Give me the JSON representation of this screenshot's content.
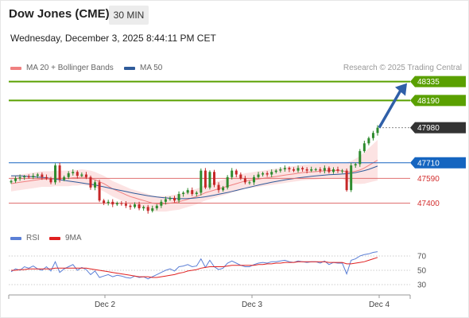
{
  "header": {
    "instrument": "Dow Jones (CME)",
    "timeframe": "30 MIN",
    "datetime": "Wednesday, December 3, 2025 8:44:11 PM CET"
  },
  "legend": {
    "bollinger": "MA 20 + Bollinger Bands",
    "ma50": "MA 50",
    "credit": "Research © 2025 Trading Central",
    "rsi": "RSI",
    "rsi_ma": "9MA"
  },
  "colors": {
    "bull": "#2e8b2e",
    "bear": "#c62828",
    "ma20": "#f08080",
    "ma50": "#2f5b9a",
    "target": "#5aa000",
    "pivot": "#1565c0",
    "support": "#d32f2f",
    "current": "#333333",
    "arrow": "#2f5fa8",
    "rsi": "#5b7fd6",
    "rsi_ma": "#e02020"
  },
  "chart_data": [
    {
      "type": "candlestick",
      "title": "Dow Jones (CME)",
      "ylim": [
        47250,
        48400
      ],
      "x_labels": [
        "Dec 2",
        "Dec 3",
        "Dec 4"
      ],
      "levels": [
        {
          "name": "target-2",
          "value": 48335,
          "label": "48335",
          "kind": "target"
        },
        {
          "name": "target-1",
          "value": 48190,
          "label": "48190",
          "kind": "target"
        },
        {
          "name": "current-price",
          "value": 47980,
          "label": "47980",
          "kind": "current"
        },
        {
          "name": "pivot",
          "value": 47710,
          "label": "47710",
          "kind": "pivot"
        },
        {
          "name": "support-1",
          "value": 47590,
          "label": "47590",
          "kind": "support"
        },
        {
          "name": "support-2",
          "value": 47400,
          "label": "47400",
          "kind": "support"
        }
      ],
      "close_path": [
        47570,
        47590,
        47600,
        47605,
        47600,
        47610,
        47620,
        47600,
        47590,
        47560,
        47690,
        47580,
        47600,
        47630,
        47640,
        47610,
        47620,
        47600,
        47520,
        47560,
        47420,
        47400,
        47410,
        47390,
        47400,
        47395,
        47380,
        47370,
        47390,
        47360,
        47370,
        47340,
        47360,
        47380,
        47410,
        47430,
        47440,
        47420,
        47470,
        47480,
        47500,
        47470,
        47480,
        47650,
        47520,
        47640,
        47540,
        47500,
        47520,
        47600,
        47650,
        47620,
        47590,
        47560,
        47560,
        47600,
        47620,
        47630,
        47620,
        47640,
        47650,
        47660,
        47670,
        47660,
        47650,
        47670,
        47660,
        47650,
        47660,
        47660,
        47650,
        47670,
        47640,
        47660,
        47650,
        47650,
        47500,
        47690,
        47700,
        47800,
        47860,
        47900,
        47940,
        47980
      ],
      "ma20": [
        47550,
        47555,
        47560,
        47565,
        47570,
        47575,
        47580,
        47585,
        47585,
        47585,
        47590,
        47590,
        47590,
        47590,
        47595,
        47595,
        47600,
        47595,
        47590,
        47580,
        47565,
        47550,
        47530,
        47510,
        47495,
        47480,
        47465,
        47450,
        47440,
        47430,
        47420,
        47410,
        47400,
        47395,
        47395,
        47395,
        47400,
        47405,
        47410,
        47420,
        47430,
        47440,
        47450,
        47465,
        47480,
        47490,
        47500,
        47510,
        47520,
        47530,
        47540,
        47550,
        47560,
        47570,
        47575,
        47580,
        47585,
        47590,
        47595,
        47600,
        47605,
        47610,
        47615,
        47620,
        47625,
        47630,
        47635,
        47638,
        47640,
        47642,
        47645,
        47648,
        47650,
        47652,
        47650,
        47648,
        47640,
        47640,
        47645,
        47655,
        47670,
        47690,
        47710,
        47730
      ],
      "ma50": [
        47610,
        47610,
        47610,
        47608,
        47605,
        47603,
        47600,
        47598,
        47595,
        47590,
        47585,
        47580,
        47575,
        47570,
        47565,
        47560,
        47555,
        47550,
        47545,
        47540,
        47532,
        47525,
        47518,
        47510,
        47503,
        47496,
        47489,
        47482,
        47475,
        47469,
        47463,
        47457,
        47452,
        47447,
        47443,
        47440,
        47437,
        47435,
        47434,
        47434,
        47435,
        47437,
        47440,
        47444,
        47449,
        47455,
        47461,
        47468,
        47475,
        47482,
        47490,
        47498,
        47506,
        47514,
        47522,
        47530,
        47538,
        47546,
        47553,
        47560,
        47567,
        47573,
        47579,
        47584,
        47589,
        47594,
        47598,
        47602,
        47606,
        47609,
        47612,
        47615,
        47618,
        47620,
        47622,
        47624,
        47626,
        47630,
        47635,
        47642,
        47650,
        47660,
        47672,
        47685
      ]
    },
    {
      "type": "line",
      "title": "RSI",
      "ylim": [
        20,
        80
      ],
      "y_ticks": [
        30,
        50,
        70
      ],
      "series": [
        {
          "name": "RSI",
          "values": [
            48,
            52,
            50,
            55,
            53,
            56,
            52,
            50,
            55,
            49,
            62,
            47,
            52,
            55,
            58,
            50,
            54,
            51,
            44,
            49,
            40,
            42,
            44,
            41,
            43,
            42,
            40,
            39,
            42,
            40,
            41,
            38,
            41,
            44,
            47,
            50,
            52,
            49,
            55,
            56,
            58,
            55,
            56,
            66,
            54,
            64,
            55,
            51,
            53,
            60,
            63,
            60,
            57,
            55,
            55,
            58,
            60,
            61,
            60,
            62,
            62,
            63,
            64,
            62,
            61,
            63,
            62,
            61,
            62,
            62,
            60,
            63,
            58,
            61,
            60,
            60,
            45,
            64,
            66,
            70,
            72,
            73,
            75,
            76
          ]
        },
        {
          "name": "9MA",
          "values": [
            50,
            50,
            51,
            51,
            52,
            52,
            52,
            52,
            52,
            52,
            53,
            53,
            53,
            53,
            53,
            53,
            53,
            53,
            52,
            51,
            50,
            49,
            48,
            47,
            46,
            45,
            44,
            43,
            42,
            41,
            41,
            41,
            40,
            40,
            41,
            42,
            43,
            44,
            46,
            47,
            49,
            50,
            51,
            53,
            54,
            55,
            55,
            55,
            55,
            56,
            57,
            57,
            57,
            57,
            57,
            57,
            58,
            58,
            59,
            59,
            60,
            60,
            61,
            61,
            61,
            62,
            62,
            62,
            62,
            62,
            62,
            62,
            61,
            61,
            61,
            61,
            59,
            59,
            60,
            61,
            62,
            64,
            66,
            68
          ]
        }
      ]
    }
  ]
}
